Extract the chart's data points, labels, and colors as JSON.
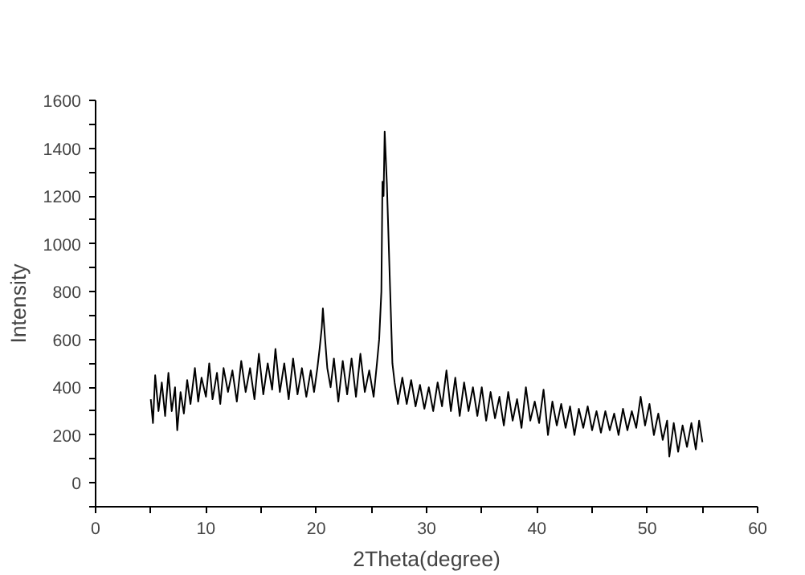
{
  "chart_data": {
    "type": "line",
    "xlabel": "2Theta(degree)",
    "ylabel": "Intensity",
    "xlim": [
      0,
      60
    ],
    "ylim": [
      -100,
      1600
    ],
    "xticks": [
      0,
      {
        "value": 5,
        "label": null
      },
      10,
      {
        "value": 15,
        "label": null
      },
      20,
      {
        "value": 25,
        "label": null
      },
      30,
      {
        "value": 35,
        "label": null
      },
      40,
      {
        "value": 45,
        "label": null
      },
      50,
      {
        "value": 55,
        "label": null
      },
      60
    ],
    "yticks": [
      {
        "value": -100,
        "label": null
      },
      0,
      {
        "value": 100,
        "label": null
      },
      200,
      {
        "value": 300,
        "label": null
      },
      400,
      {
        "value": 500,
        "label": null
      },
      600,
      {
        "value": 700,
        "label": null
      },
      800,
      {
        "value": 900,
        "label": null
      },
      1000,
      {
        "value": 1100,
        "label": null
      },
      1200,
      {
        "value": 1300,
        "label": null
      },
      1400,
      {
        "value": 1500,
        "label": null
      },
      1600
    ],
    "grid": false,
    "marker": "none",
    "line_style": "solid",
    "series": [
      {
        "color": "#000000",
        "x": [
          5.0,
          5.2,
          5.4,
          5.7,
          6.0,
          6.3,
          6.6,
          6.9,
          7.2,
          7.4,
          7.7,
          8.0,
          8.3,
          8.6,
          9.0,
          9.3,
          9.6,
          10.0,
          10.3,
          10.6,
          11.0,
          11.3,
          11.6,
          12.0,
          12.4,
          12.8,
          13.2,
          13.6,
          14.0,
          14.4,
          14.8,
          15.2,
          15.6,
          16.0,
          16.3,
          16.7,
          17.1,
          17.5,
          17.9,
          18.3,
          18.7,
          19.1,
          19.5,
          19.8,
          20.1,
          20.3,
          20.5,
          20.6,
          20.8,
          21.0,
          21.3,
          21.6,
          22.0,
          22.4,
          22.8,
          23.2,
          23.6,
          24.0,
          24.4,
          24.8,
          25.2,
          25.5,
          25.7,
          25.9,
          26.0,
          26.1,
          26.2,
          26.4,
          26.5,
          26.7,
          26.9,
          27.1,
          27.4,
          27.8,
          28.2,
          28.6,
          29.0,
          29.4,
          29.8,
          30.2,
          30.6,
          31.0,
          31.4,
          31.8,
          32.2,
          32.6,
          33.0,
          33.4,
          33.8,
          34.2,
          34.6,
          35.0,
          35.4,
          35.8,
          36.2,
          36.6,
          37.0,
          37.4,
          37.8,
          38.2,
          38.6,
          39.0,
          39.4,
          39.8,
          40.2,
          40.6,
          41.0,
          41.4,
          41.8,
          42.2,
          42.6,
          43.0,
          43.4,
          43.8,
          44.2,
          44.6,
          45.0,
          45.4,
          45.8,
          46.2,
          46.6,
          47.0,
          47.4,
          47.8,
          48.2,
          48.6,
          49.0,
          49.4,
          49.8,
          50.2,
          50.6,
          51.0,
          51.4,
          51.8,
          52.0,
          52.4,
          52.8,
          53.2,
          53.6,
          54.0,
          54.4,
          54.7,
          55.0
        ],
        "values": [
          350,
          250,
          450,
          300,
          420,
          280,
          460,
          300,
          400,
          220,
          380,
          290,
          430,
          330,
          480,
          340,
          440,
          360,
          500,
          350,
          460,
          330,
          480,
          380,
          470,
          340,
          510,
          380,
          480,
          350,
          540,
          370,
          500,
          390,
          560,
          380,
          500,
          350,
          520,
          370,
          480,
          360,
          470,
          380,
          480,
          560,
          650,
          730,
          600,
          480,
          400,
          520,
          340,
          510,
          370,
          520,
          360,
          540,
          380,
          470,
          360,
          500,
          600,
          800,
          1260,
          1200,
          1470,
          1250,
          1100,
          800,
          500,
          420,
          330,
          440,
          330,
          430,
          320,
          410,
          310,
          400,
          300,
          420,
          320,
          470,
          300,
          440,
          280,
          420,
          300,
          400,
          280,
          400,
          260,
          380,
          270,
          360,
          240,
          380,
          260,
          350,
          230,
          400,
          260,
          340,
          250,
          390,
          200,
          340,
          240,
          330,
          230,
          320,
          200,
          310,
          230,
          320,
          220,
          300,
          210,
          300,
          220,
          290,
          200,
          310,
          220,
          300,
          230,
          360,
          240,
          330,
          200,
          290,
          180,
          260,
          110,
          250,
          130,
          240,
          150,
          250,
          140,
          260,
          170
        ]
      }
    ]
  }
}
